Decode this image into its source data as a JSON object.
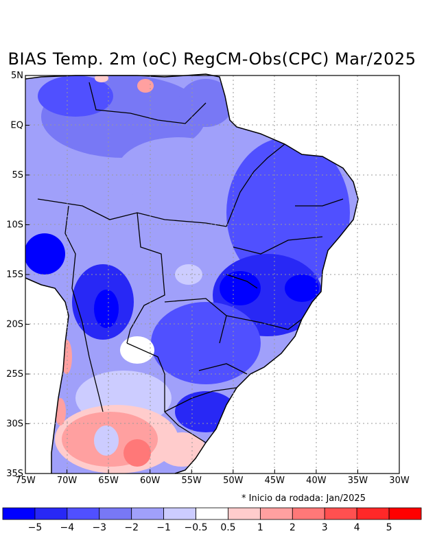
{
  "title": "BIAS Temp. 2m (oC) RegCM-Obs(CPC) Mar/2025",
  "note": "* Inicio da rodada: Jan/2025",
  "map": {
    "lon_range": [
      -75,
      -30
    ],
    "lat_range": [
      -35,
      5
    ],
    "lon_ticks": [
      {
        "lon": -75,
        "label": "75W"
      },
      {
        "lon": -70,
        "label": "70W"
      },
      {
        "lon": -65,
        "label": "65W"
      },
      {
        "lon": -60,
        "label": "60W"
      },
      {
        "lon": -55,
        "label": "55W"
      },
      {
        "lon": -50,
        "label": "50W"
      },
      {
        "lon": -45,
        "label": "45W"
      },
      {
        "lon": -40,
        "label": "40W"
      },
      {
        "lon": -35,
        "label": "35W"
      },
      {
        "lon": -30,
        "label": "30W"
      }
    ],
    "lat_ticks": [
      {
        "lat": 5,
        "label": "5N"
      },
      {
        "lat": 0,
        "label": "EQ"
      },
      {
        "lat": -5,
        "label": "5S"
      },
      {
        "lat": -10,
        "label": "10S"
      },
      {
        "lat": -15,
        "label": "15S"
      },
      {
        "lat": -20,
        "label": "20S"
      },
      {
        "lat": -25,
        "label": "25S"
      },
      {
        "lat": -30,
        "label": "30S"
      },
      {
        "lat": -35,
        "label": "35S"
      }
    ],
    "gridlines": "dotted"
  },
  "colorbar": {
    "colors": [
      "#0000ff",
      "#2828f5",
      "#5050ff",
      "#7878f5",
      "#a0a0fa",
      "#ccccff",
      "#ffffff",
      "#ffcccc",
      "#ffa0a0",
      "#ff7878",
      "#ff5050",
      "#ff2828",
      "#ff0000"
    ],
    "labels": [
      "−5",
      "−4",
      "−3",
      "−2",
      "−1",
      "−0.5",
      "0.5",
      "1",
      "2",
      "3",
      "4",
      "5"
    ]
  }
}
